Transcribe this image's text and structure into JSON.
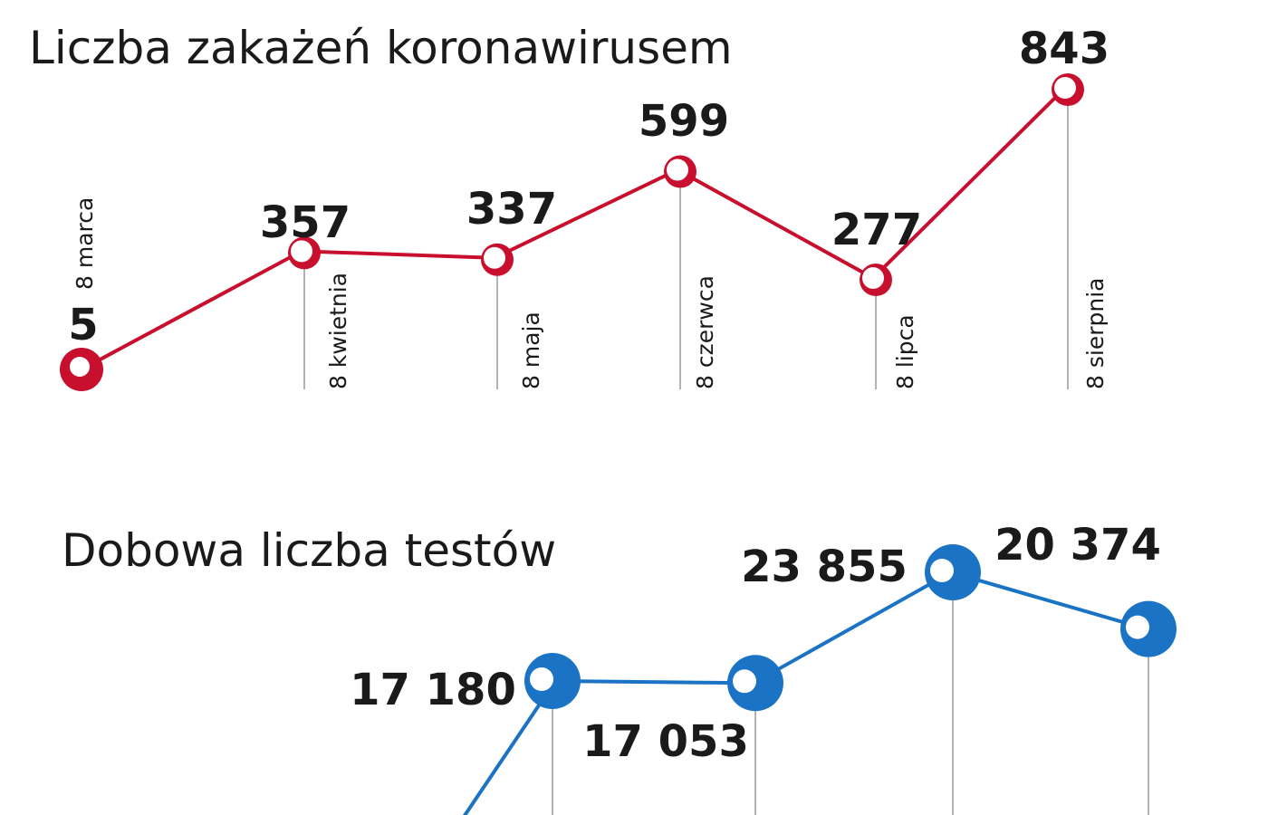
{
  "chart_data": [
    {
      "type": "line",
      "title": "Liczba zakażeń koronawirusem",
      "categories": [
        "8 marca",
        "8 kwietnia",
        "8 maja",
        "8 czerwca",
        "8 lipca",
        "8 sierpnia"
      ],
      "values": [
        5,
        357,
        337,
        599,
        277,
        843
      ],
      "value_labels": [
        "5",
        "357",
        "337",
        "599",
        "277",
        "843"
      ],
      "color": "#c8102e",
      "grid": false
    },
    {
      "type": "line",
      "title": "Dobowa liczba testów",
      "categories": [
        "",
        "",
        "",
        ""
      ],
      "values": [
        17180,
        17053,
        23855,
        20374
      ],
      "value_labels": [
        "17 180",
        "17 053",
        "23 855",
        "20 374"
      ],
      "color": "#1a73c4",
      "grid": false
    }
  ]
}
